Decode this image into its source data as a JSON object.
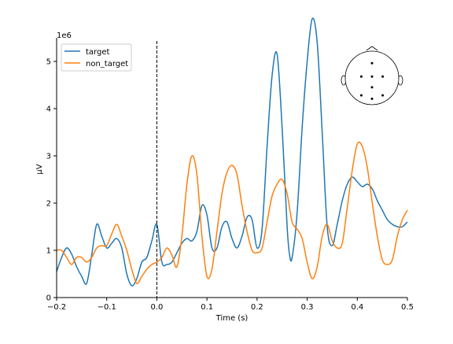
{
  "chart_data": {
    "type": "line",
    "xlabel": "Time (s)",
    "ylabel": "µV",
    "y_scale_label": "1e6",
    "xlim": [
      -0.2,
      0.5
    ],
    "ylim": [
      0,
      5.5
    ],
    "x_ticks": [
      -0.2,
      -0.1,
      0.0,
      0.1,
      0.2,
      0.3,
      0.4,
      0.5
    ],
    "x_tick_labels": [
      "−0.2",
      "−0.1",
      "0.0",
      "0.1",
      "0.2",
      "0.3",
      "0.4",
      "0.5"
    ],
    "y_ticks": [
      0,
      1,
      2,
      3,
      4,
      5
    ],
    "y_tick_labels": [
      "0",
      "1",
      "2",
      "3",
      "4",
      "5"
    ],
    "vline_x": 0.0,
    "grid": false,
    "legend_position": "top-left",
    "series": [
      {
        "name": "target",
        "color": "#1f77b4",
        "points": [
          [
            -0.2,
            0.55
          ],
          [
            -0.19,
            0.85
          ],
          [
            -0.18,
            1.05
          ],
          [
            -0.17,
            0.92
          ],
          [
            -0.16,
            0.65
          ],
          [
            -0.15,
            0.45
          ],
          [
            -0.14,
            0.3
          ],
          [
            -0.13,
            0.9
          ],
          [
            -0.12,
            1.55
          ],
          [
            -0.11,
            1.3
          ],
          [
            -0.1,
            1.05
          ],
          [
            -0.09,
            1.15
          ],
          [
            -0.08,
            1.25
          ],
          [
            -0.07,
            1.05
          ],
          [
            -0.06,
            0.5
          ],
          [
            -0.05,
            0.25
          ],
          [
            -0.04,
            0.4
          ],
          [
            -0.03,
            0.75
          ],
          [
            -0.02,
            0.85
          ],
          [
            -0.01,
            1.2
          ],
          [
            0.0,
            1.55
          ],
          [
            0.01,
            0.75
          ],
          [
            0.02,
            0.7
          ],
          [
            0.03,
            0.75
          ],
          [
            0.04,
            0.95
          ],
          [
            0.05,
            1.15
          ],
          [
            0.06,
            1.25
          ],
          [
            0.07,
            1.2
          ],
          [
            0.08,
            1.4
          ],
          [
            0.09,
            1.95
          ],
          [
            0.1,
            1.75
          ],
          [
            0.11,
            1.05
          ],
          [
            0.12,
            1.05
          ],
          [
            0.13,
            1.5
          ],
          [
            0.14,
            1.6
          ],
          [
            0.15,
            1.25
          ],
          [
            0.16,
            1.05
          ],
          [
            0.17,
            1.3
          ],
          [
            0.18,
            1.7
          ],
          [
            0.19,
            1.65
          ],
          [
            0.2,
            1.05
          ],
          [
            0.21,
            1.45
          ],
          [
            0.22,
            3.2
          ],
          [
            0.23,
            4.7
          ],
          [
            0.24,
            5.15
          ],
          [
            0.25,
            3.6
          ],
          [
            0.26,
            1.5
          ],
          [
            0.265,
            0.9
          ],
          [
            0.27,
            0.85
          ],
          [
            0.28,
            1.8
          ],
          [
            0.29,
            3.6
          ],
          [
            0.3,
            5.0
          ],
          [
            0.31,
            5.9
          ],
          [
            0.32,
            5.4
          ],
          [
            0.33,
            3.5
          ],
          [
            0.34,
            1.5
          ],
          [
            0.35,
            1.1
          ],
          [
            0.36,
            1.55
          ],
          [
            0.37,
            2.05
          ],
          [
            0.38,
            2.4
          ],
          [
            0.39,
            2.55
          ],
          [
            0.4,
            2.45
          ],
          [
            0.41,
            2.35
          ],
          [
            0.42,
            2.4
          ],
          [
            0.43,
            2.3
          ],
          [
            0.44,
            2.05
          ],
          [
            0.45,
            1.85
          ],
          [
            0.46,
            1.65
          ],
          [
            0.47,
            1.55
          ],
          [
            0.48,
            1.5
          ],
          [
            0.49,
            1.5
          ],
          [
            0.5,
            1.6
          ]
        ]
      },
      {
        "name": "non_target",
        "color": "#ff7f0e",
        "points": [
          [
            -0.2,
            1.0
          ],
          [
            -0.19,
            1.0
          ],
          [
            -0.18,
            0.85
          ],
          [
            -0.17,
            0.7
          ],
          [
            -0.16,
            0.85
          ],
          [
            -0.15,
            0.85
          ],
          [
            -0.14,
            0.75
          ],
          [
            -0.13,
            0.85
          ],
          [
            -0.12,
            1.05
          ],
          [
            -0.11,
            1.1
          ],
          [
            -0.1,
            1.1
          ],
          [
            -0.09,
            1.35
          ],
          [
            -0.08,
            1.55
          ],
          [
            -0.07,
            1.3
          ],
          [
            -0.06,
            1.0
          ],
          [
            -0.05,
            0.6
          ],
          [
            -0.04,
            0.3
          ],
          [
            -0.03,
            0.45
          ],
          [
            -0.02,
            0.6
          ],
          [
            -0.01,
            0.7
          ],
          [
            0.0,
            0.75
          ],
          [
            0.01,
            0.85
          ],
          [
            0.02,
            1.05
          ],
          [
            0.03,
            0.9
          ],
          [
            0.04,
            0.65
          ],
          [
            0.05,
            1.3
          ],
          [
            0.06,
            2.4
          ],
          [
            0.07,
            3.0
          ],
          [
            0.08,
            2.6
          ],
          [
            0.09,
            1.3
          ],
          [
            0.1,
            0.45
          ],
          [
            0.11,
            0.6
          ],
          [
            0.12,
            1.4
          ],
          [
            0.13,
            2.2
          ],
          [
            0.14,
            2.65
          ],
          [
            0.15,
            2.8
          ],
          [
            0.16,
            2.6
          ],
          [
            0.17,
            1.95
          ],
          [
            0.18,
            1.4
          ],
          [
            0.19,
            1.0
          ],
          [
            0.2,
            0.95
          ],
          [
            0.21,
            1.05
          ],
          [
            0.22,
            1.6
          ],
          [
            0.23,
            2.15
          ],
          [
            0.24,
            2.4
          ],
          [
            0.25,
            2.5
          ],
          [
            0.26,
            2.2
          ],
          [
            0.27,
            1.6
          ],
          [
            0.28,
            1.45
          ],
          [
            0.29,
            1.25
          ],
          [
            0.3,
            0.75
          ],
          [
            0.31,
            0.4
          ],
          [
            0.32,
            0.65
          ],
          [
            0.33,
            1.3
          ],
          [
            0.34,
            1.55
          ],
          [
            0.35,
            1.2
          ],
          [
            0.36,
            1.05
          ],
          [
            0.37,
            1.15
          ],
          [
            0.38,
            1.9
          ],
          [
            0.39,
            2.7
          ],
          [
            0.4,
            3.25
          ],
          [
            0.41,
            3.2
          ],
          [
            0.42,
            2.75
          ],
          [
            0.43,
            2.0
          ],
          [
            0.44,
            1.3
          ],
          [
            0.45,
            0.8
          ],
          [
            0.46,
            0.7
          ],
          [
            0.47,
            0.8
          ],
          [
            0.48,
            1.3
          ],
          [
            0.49,
            1.65
          ],
          [
            0.5,
            1.85
          ]
        ]
      }
    ],
    "legend": [
      {
        "name": "target",
        "color": "#1f77b4"
      },
      {
        "name": "non_target",
        "color": "#ff7f0e"
      }
    ],
    "head_inset": {
      "sensors": [
        [
          0.0,
          0.55
        ],
        [
          -0.4,
          0.05
        ],
        [
          0.0,
          0.05
        ],
        [
          0.4,
          0.05
        ],
        [
          0.0,
          -0.35
        ],
        [
          -0.4,
          -0.65
        ],
        [
          0.0,
          -0.78
        ],
        [
          0.4,
          -0.65
        ]
      ]
    }
  }
}
